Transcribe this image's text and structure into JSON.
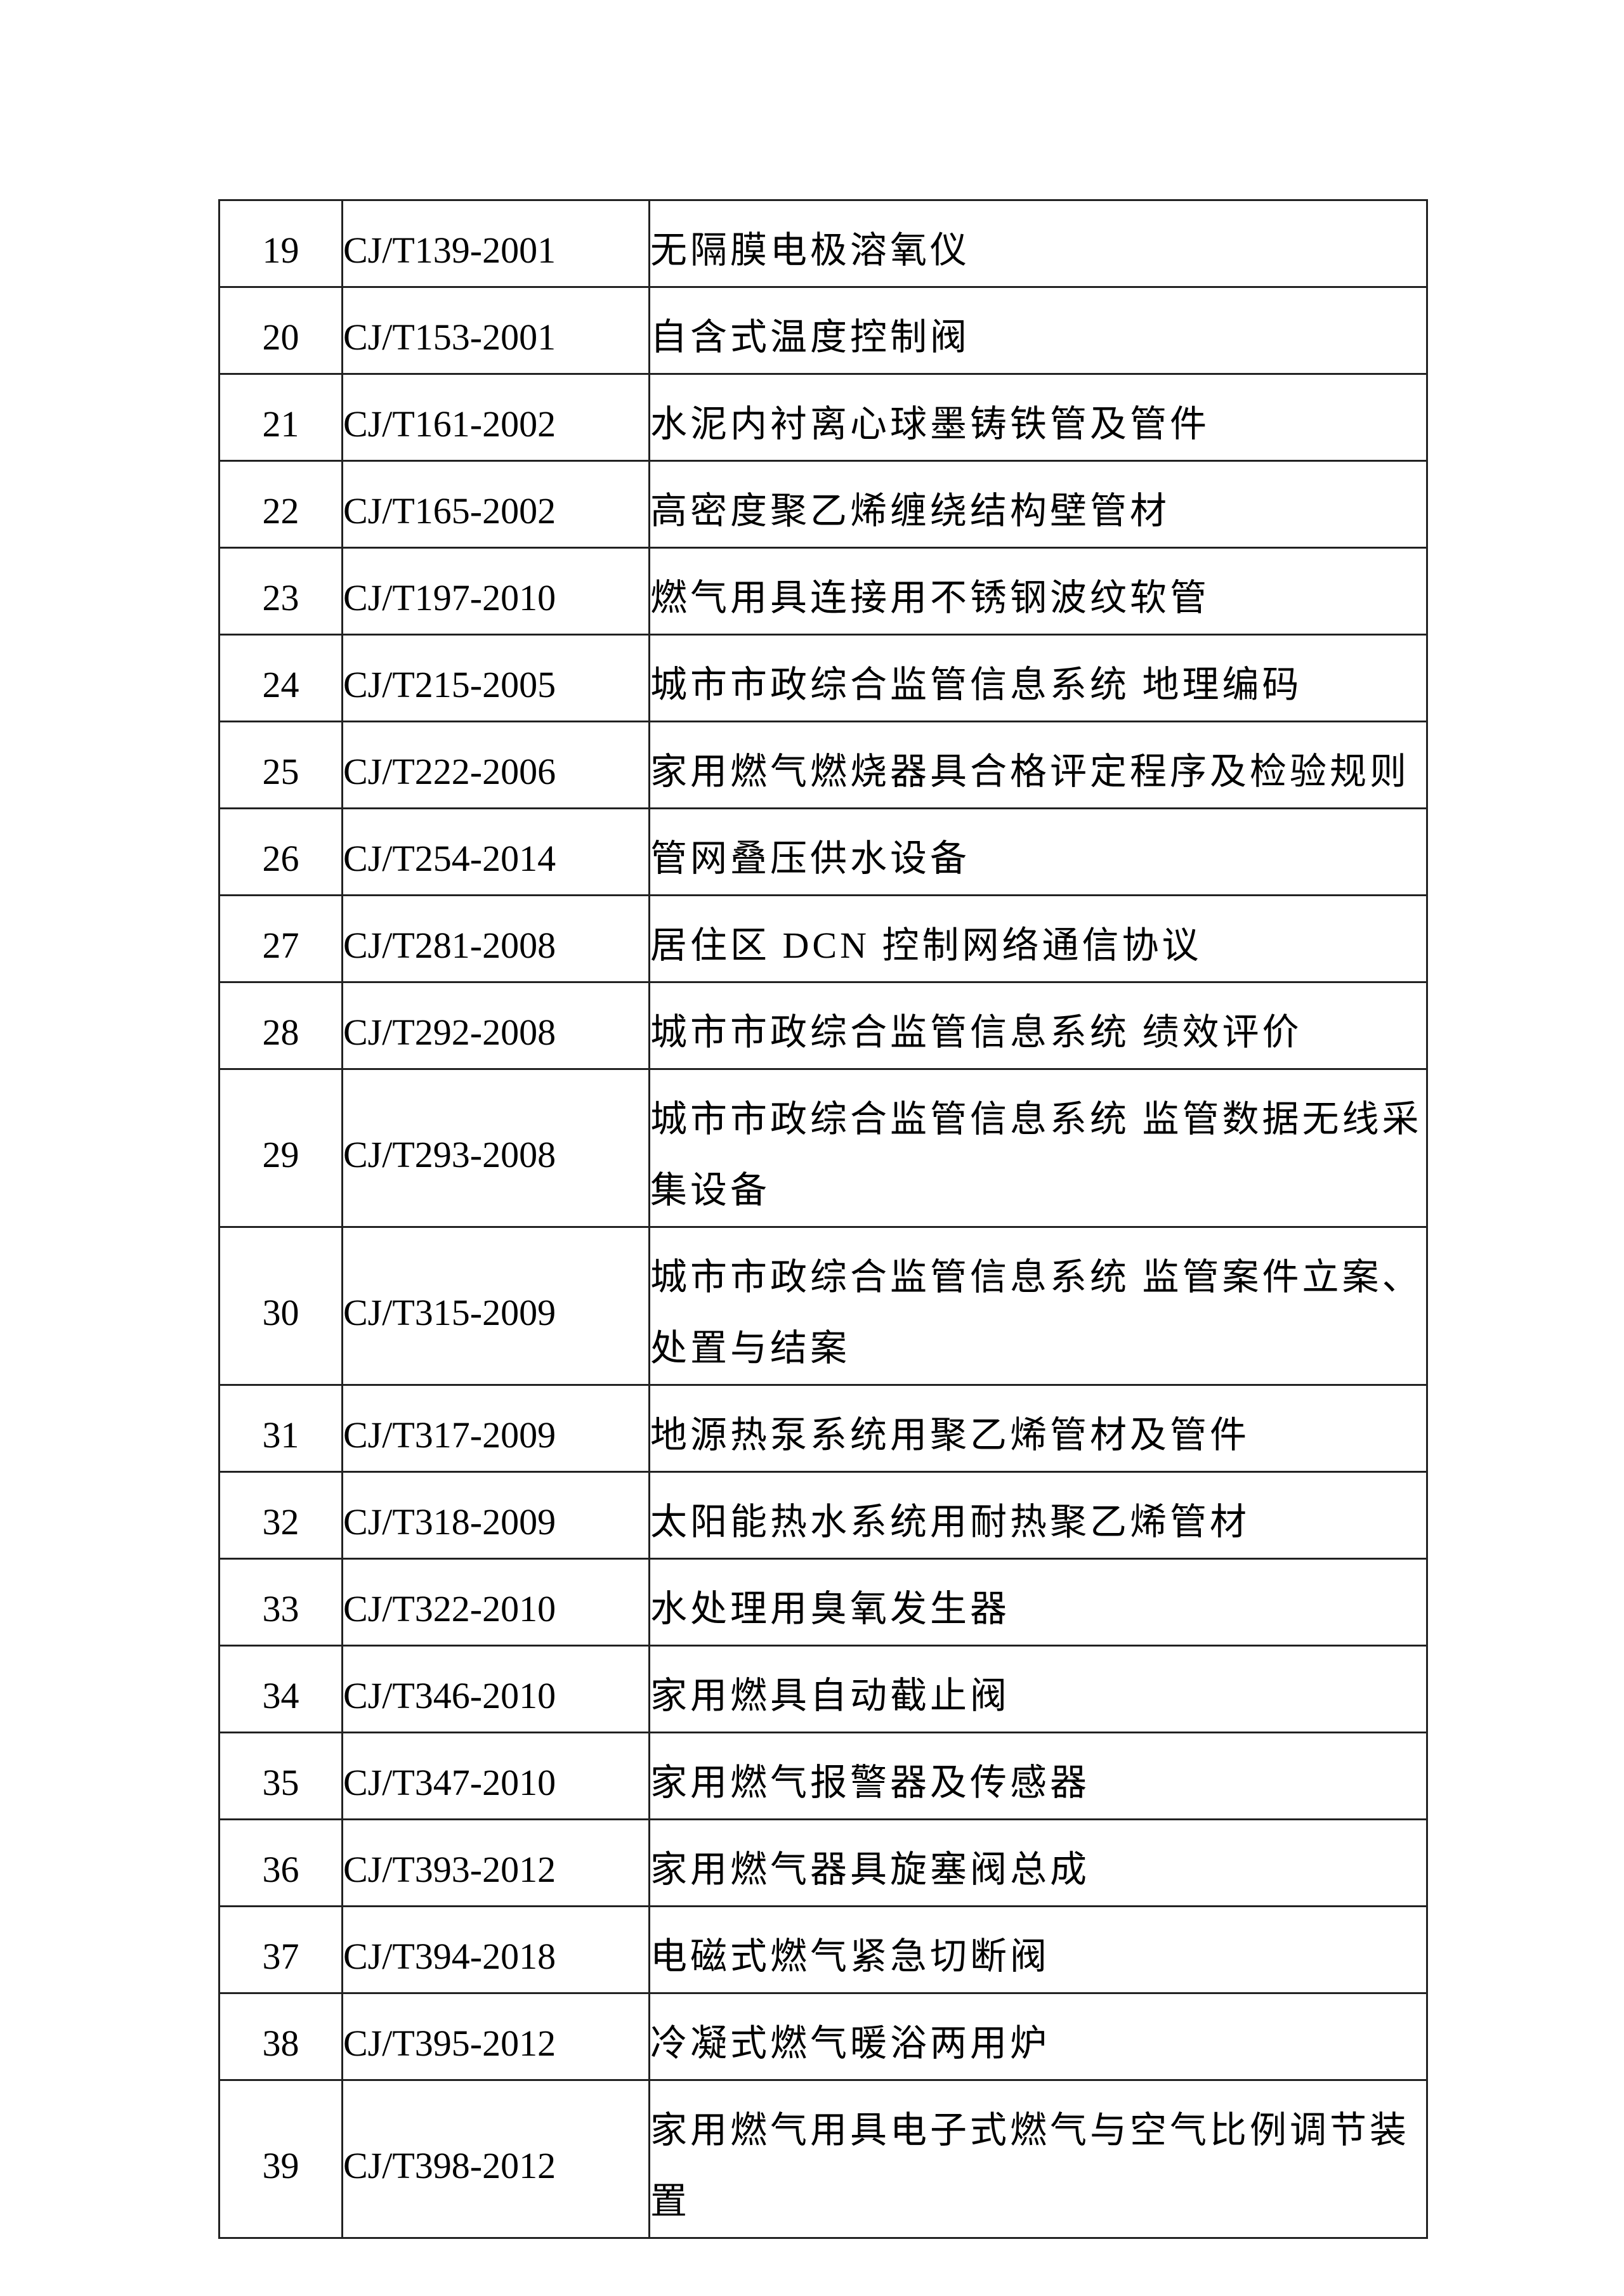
{
  "table": {
    "rows": [
      {
        "no": "19",
        "code": "CJ/T139-2001",
        "name": "无隔膜电极溶氧仪"
      },
      {
        "no": "20",
        "code": "CJ/T153-2001",
        "name": "自含式温度控制阀"
      },
      {
        "no": "21",
        "code": "CJ/T161-2002",
        "name": "水泥内衬离心球墨铸铁管及管件"
      },
      {
        "no": "22",
        "code": "CJ/T165-2002",
        "name": "高密度聚乙烯缠绕结构壁管材"
      },
      {
        "no": "23",
        "code": "CJ/T197-2010",
        "name": "燃气用具连接用不锈钢波纹软管"
      },
      {
        "no": "24",
        "code": "CJ/T215-2005",
        "name": "城市市政综合监管信息系统 地理编码"
      },
      {
        "no": "25",
        "code": "CJ/T222-2006",
        "name": "家用燃气燃烧器具合格评定程序及检验规则"
      },
      {
        "no": "26",
        "code": "CJ/T254-2014",
        "name": "管网叠压供水设备"
      },
      {
        "no": "27",
        "code": "CJ/T281-2008",
        "name": "居住区 DCN 控制网络通信协议"
      },
      {
        "no": "28",
        "code": "CJ/T292-2008",
        "name": "城市市政综合监管信息系统 绩效评价"
      },
      {
        "no": "29",
        "code": "CJ/T293-2008",
        "name": "城市市政综合监管信息系统 监管数据无线采集设备"
      },
      {
        "no": "30",
        "code": "CJ/T315-2009",
        "name": "城市市政综合监管信息系统 监管案件立案、处置与结案"
      },
      {
        "no": "31",
        "code": "CJ/T317-2009",
        "name": "地源热泵系统用聚乙烯管材及管件"
      },
      {
        "no": "32",
        "code": "CJ/T318-2009",
        "name": "太阳能热水系统用耐热聚乙烯管材"
      },
      {
        "no": "33",
        "code": "CJ/T322-2010",
        "name": "水处理用臭氧发生器"
      },
      {
        "no": "34",
        "code": "CJ/T346-2010",
        "name": "家用燃具自动截止阀"
      },
      {
        "no": "35",
        "code": "CJ/T347-2010",
        "name": "家用燃气报警器及传感器"
      },
      {
        "no": "36",
        "code": "CJ/T393-2012",
        "name": "家用燃气器具旋塞阀总成"
      },
      {
        "no": "37",
        "code": "CJ/T394-2018",
        "name": "电磁式燃气紧急切断阀"
      },
      {
        "no": "38",
        "code": "CJ/T395-2012",
        "name": "冷凝式燃气暖浴两用炉"
      },
      {
        "no": "39",
        "code": "CJ/T398-2012",
        "name": "家用燃气用具电子式燃气与空气比例调节装置"
      }
    ]
  }
}
